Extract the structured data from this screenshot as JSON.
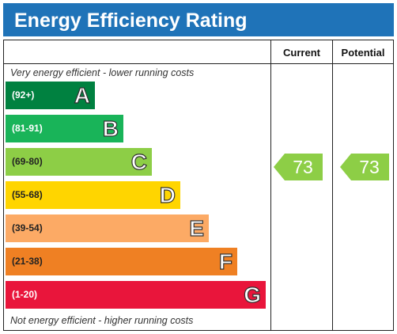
{
  "title": "Energy Efficiency Rating",
  "columns": {
    "current": "Current",
    "potential": "Potential"
  },
  "top_note": "Very energy efficient - lower running costs",
  "bottom_note": "Not energy efficient - higher running costs",
  "colors": {
    "header": "#1f73b8",
    "A": "#008140",
    "B": "#19b459",
    "C": "#8dce46",
    "D": "#ffd500",
    "E": "#fcaa65",
    "F": "#ef8023",
    "G": "#e9153b"
  },
  "chart_data": {
    "type": "bar",
    "title": "Energy Efficiency Rating",
    "bands": [
      {
        "letter": "A",
        "range": "(92+)"
      },
      {
        "letter": "B",
        "range": "(81-91)"
      },
      {
        "letter": "C",
        "range": "(69-80)"
      },
      {
        "letter": "D",
        "range": "(55-68)"
      },
      {
        "letter": "E",
        "range": "(39-54)"
      },
      {
        "letter": "F",
        "range": "(21-38)"
      },
      {
        "letter": "G",
        "range": "(1-20)"
      }
    ],
    "current": 73,
    "potential": 73,
    "current_band": "C",
    "potential_band": "C"
  }
}
